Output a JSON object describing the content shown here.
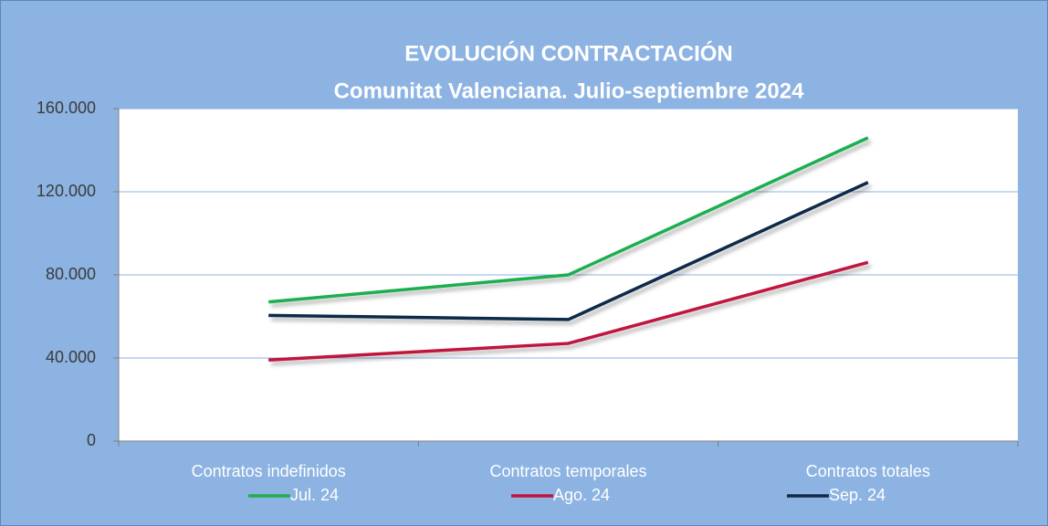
{
  "chart_data": {
    "type": "line",
    "title": "EVOLUCIÓN CONTRACTACIÓN",
    "subtitle": "Comunitat Valenciana. Julio-septiembre 2024",
    "categories": [
      "Contratos indefinidos",
      "Contratos temporales",
      "Contratos totales"
    ],
    "series": [
      {
        "name": "Jul. 24",
        "color": "#1faf4f",
        "values": [
          67000,
          80000,
          146000
        ]
      },
      {
        "name": "Ago. 24",
        "color": "#c0143c",
        "values": [
          39000,
          47000,
          86000
        ]
      },
      {
        "name": "Sep. 24",
        "color": "#0f2a4a",
        "values": [
          60500,
          58500,
          124500
        ]
      }
    ],
    "ylim": [
      0,
      160000
    ],
    "yticks": [
      0,
      {
        "value": 40000,
        "label": "40.000"
      },
      {
        "value": 80000,
        "label": "80.000"
      },
      {
        "value": 120000,
        "label": "120.000"
      },
      {
        "value": 160000,
        "label": "160.000"
      }
    ],
    "grid": true,
    "legend": "bottom"
  }
}
